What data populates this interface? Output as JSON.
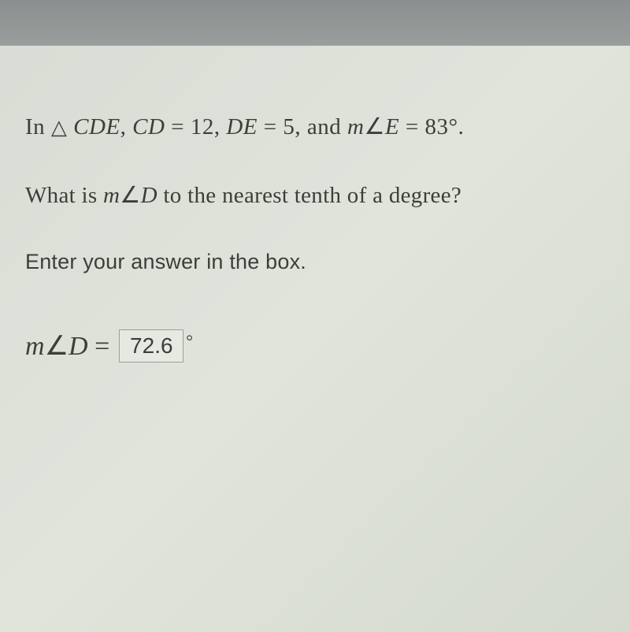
{
  "problem": {
    "prefix": "In ",
    "triangle_symbol": "△",
    "triangle_name": " CDE",
    "comma1": ", ",
    "side1_name": "CD",
    "eq1": " = ",
    "side1_value": "12",
    "comma2": ", ",
    "side2_name": "DE",
    "eq2": " = ",
    "side2_value": "5",
    "comma3": ", and ",
    "angle_measure_prefix": "m",
    "angle_symbol": "∠",
    "angle_name": "E",
    "eq3": " = ",
    "angle_value": "83",
    "degree": "°",
    "period": "."
  },
  "question": {
    "prefix": "What is ",
    "measure_prefix": "m",
    "angle_symbol": "∠",
    "angle_name": "D",
    "suffix": " to the nearest tenth of a degree?"
  },
  "instruction": {
    "text": "Enter your answer in the box."
  },
  "answer": {
    "measure_prefix": "m",
    "angle_symbol": "∠",
    "angle_name": "D",
    "equals": " = ",
    "input_value": "72.6",
    "degree": "°"
  },
  "colors": {
    "background_light": "#e0e4db",
    "background_dark": "#d5dad0",
    "top_bar": "#8a8f8f",
    "text": "#3a3f3a",
    "input_border": "#9aa09a",
    "input_bg": "#ebeee8"
  }
}
